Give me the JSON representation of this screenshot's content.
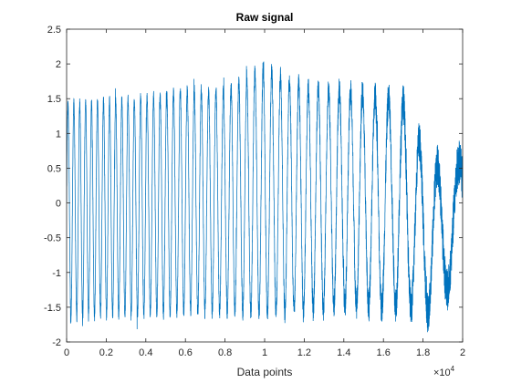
{
  "chart_data": {
    "type": "line",
    "title": "Raw signal",
    "xlabel": "Data points",
    "ylabel": "",
    "xlim": [
      0,
      20000
    ],
    "ylim": [
      -2,
      2.5
    ],
    "x_ticks": [
      0,
      2000,
      4000,
      6000,
      8000,
      10000,
      12000,
      14000,
      16000,
      18000,
      20000
    ],
    "x_tick_labels": [
      "0",
      "0.2",
      "0.4",
      "0.6",
      "0.8",
      "1",
      "1.2",
      "1.4",
      "1.6",
      "1.8",
      "2"
    ],
    "x_exponent": "×10",
    "x_exponent_power": "4",
    "y_ticks": [
      -2,
      -1.5,
      -1,
      -0.5,
      0,
      0.5,
      1,
      1.5,
      2,
      2.5
    ],
    "y_tick_labels": [
      "-2",
      "-1.5",
      "-1",
      "-0.5",
      "0",
      "0.5",
      "1",
      "1.5",
      "2",
      "2.5"
    ],
    "grid": false,
    "box": true,
    "series": [
      {
        "color": "#0072BD",
        "x_range": [
          0,
          20000
        ],
        "point_count": 20000,
        "description_of_shape": "chirp oscillation, period shrinking toward start",
        "envelope": [
          {
            "x": 0,
            "upper": 1.55,
            "lower": -1.8
          },
          {
            "x": 2000,
            "upper": 1.6,
            "lower": -1.75
          },
          {
            "x": 4000,
            "upper": 1.65,
            "lower": -1.75
          },
          {
            "x": 6000,
            "upper": 1.75,
            "lower": -1.7
          },
          {
            "x": 8000,
            "upper": 1.75,
            "lower": -1.7
          },
          {
            "x": 10000,
            "upper": 2.1,
            "lower": -1.75
          },
          {
            "x": 12000,
            "upper": 1.8,
            "lower": -1.7
          },
          {
            "x": 14000,
            "upper": 1.75,
            "lower": -1.6
          },
          {
            "x": 16000,
            "upper": 1.65,
            "lower": -1.65
          },
          {
            "x": 17000,
            "upper": 1.6,
            "lower": -1.55
          },
          {
            "x": 18000,
            "upper": 0.85,
            "lower": -1.75
          },
          {
            "x": 19000,
            "upper": 0.55,
            "lower": -1.5
          },
          {
            "x": 20000,
            "upper": 0.65,
            "lower": -0.8
          }
        ]
      }
    ]
  }
}
